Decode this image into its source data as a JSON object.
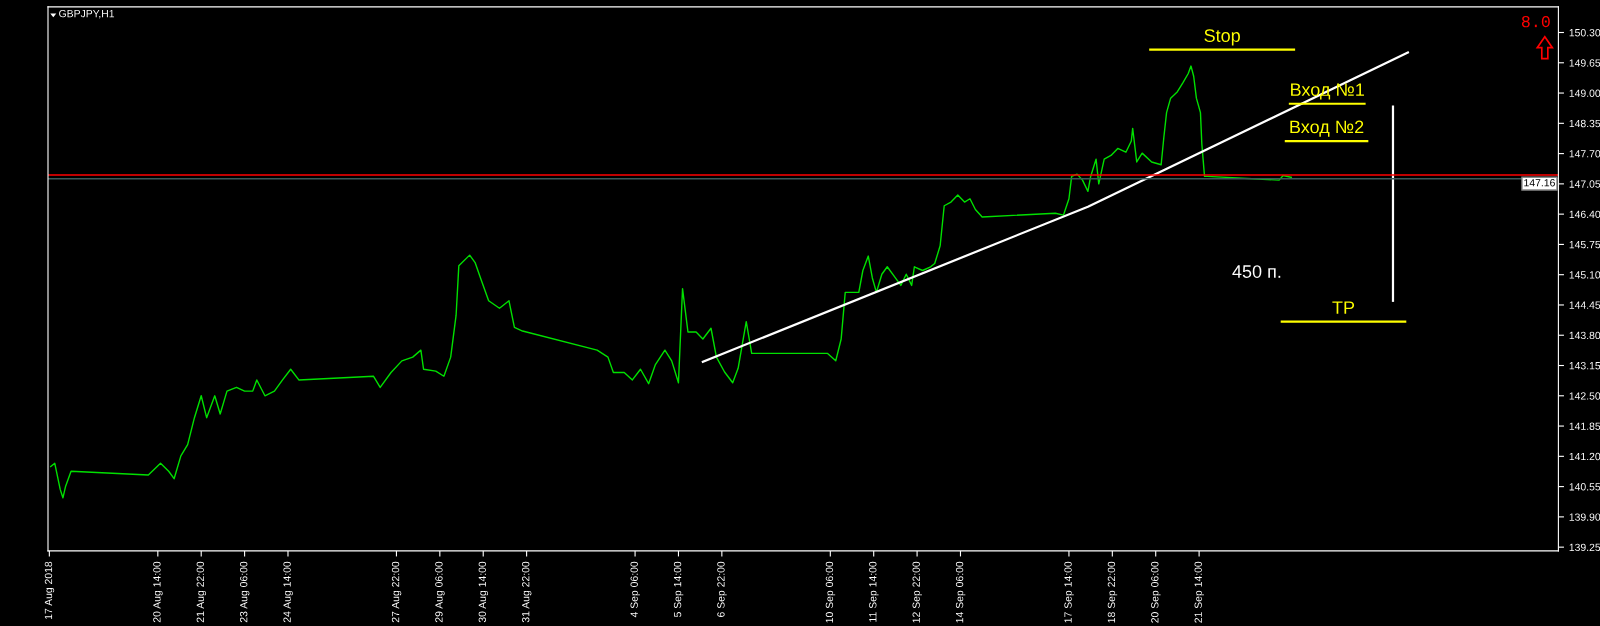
{
  "chart_data": {
    "type": "line",
    "title": "GBPJPY,H1",
    "xlim": [
      "2018-08-17T05:00",
      "2018-10-02T15:00"
    ],
    "ylim": [
      139.17,
      150.85
    ],
    "xticks": [
      {
        "value": "2018-08-17T06:00",
        "label": "17 Aug 2018"
      },
      {
        "value": "2018-08-20T14:00",
        "label": "20 Aug 14:00"
      },
      {
        "value": "2018-08-21T22:00",
        "label": "21 Aug 22:00"
      },
      {
        "value": "2018-08-23T06:00",
        "label": "23 Aug 06:00"
      },
      {
        "value": "2018-08-24T14:00",
        "label": "24 Aug 14:00"
      },
      {
        "value": "2018-08-27T22:00",
        "label": "27 Aug 22:00"
      },
      {
        "value": "2018-08-29T06:00",
        "label": "29 Aug 06:00"
      },
      {
        "value": "2018-08-30T14:00",
        "label": "30 Aug 14:00"
      },
      {
        "value": "2018-08-31T22:00",
        "label": "31 Aug 22:00"
      },
      {
        "value": "2018-09-04T06:00",
        "label": "4 Sep 06:00"
      },
      {
        "value": "2018-09-05T14:00",
        "label": "5 Sep 14:00"
      },
      {
        "value": "2018-09-06T22:00",
        "label": "6 Sep 22:00"
      },
      {
        "value": "2018-09-10T06:00",
        "label": "10 Sep 06:00"
      },
      {
        "value": "2018-09-11T14:00",
        "label": "11 Sep 14:00"
      },
      {
        "value": "2018-09-12T22:00",
        "label": "12 Sep 22:00"
      },
      {
        "value": "2018-09-14T06:00",
        "label": "14 Sep 06:00"
      },
      {
        "value": "2018-09-17T14:00",
        "label": "17 Sep 14:00"
      },
      {
        "value": "2018-09-18T22:00",
        "label": "18 Sep 22:00"
      },
      {
        "value": "2018-09-20T06:00",
        "label": "20 Sep 06:00"
      },
      {
        "value": "2018-09-21T14:00",
        "label": "21 Sep 14:00"
      }
    ],
    "yticks": [
      {
        "value": 150.3,
        "label": "150.30"
      },
      {
        "value": 149.65,
        "label": "149.65"
      },
      {
        "value": 149.0,
        "label": "149.00"
      },
      {
        "value": 148.35,
        "label": "148.35"
      },
      {
        "value": 147.7,
        "label": "147.70"
      },
      {
        "value": 147.05,
        "label": "147.05"
      },
      {
        "value": 146.4,
        "label": "146.40"
      },
      {
        "value": 145.75,
        "label": "145.75"
      },
      {
        "value": 145.1,
        "label": "145.10"
      },
      {
        "value": 144.45,
        "label": "144.45"
      },
      {
        "value": 143.8,
        "label": "143.80"
      },
      {
        "value": 143.15,
        "label": "143.15"
      },
      {
        "value": 142.5,
        "label": "142.50"
      },
      {
        "value": 141.85,
        "label": "141.85"
      },
      {
        "value": 141.2,
        "label": "141.20"
      },
      {
        "value": 140.55,
        "label": "140.55"
      },
      {
        "value": 139.9,
        "label": "139.90"
      },
      {
        "value": 139.25,
        "label": "139.25"
      }
    ],
    "grid": false,
    "legend": false,
    "series": [
      {
        "color": "#00e000",
        "marker": "none",
        "x": [
          "2018-08-17T07:00",
          "2018-08-17T10:00",
          "2018-08-17T14:00",
          "2018-08-17T16:00",
          "2018-08-17T18:00",
          "2018-08-17T22:00",
          "2018-08-20T07:00",
          "2018-08-20T16:00",
          "2018-08-20T22:00",
          "2018-08-21T02:00",
          "2018-08-21T07:00",
          "2018-08-21T12:00",
          "2018-08-21T17:00",
          "2018-08-21T22:00",
          "2018-08-22T02:00",
          "2018-08-22T08:00",
          "2018-08-22T12:00",
          "2018-08-22T17:00",
          "2018-08-23T00:00",
          "2018-08-23T06:00",
          "2018-08-23T12:00",
          "2018-08-23T15:00",
          "2018-08-23T21:00",
          "2018-08-24T04:00",
          "2018-08-24T10:00",
          "2018-08-24T16:00",
          "2018-08-24T22:00",
          "2018-08-27T05:00",
          "2018-08-27T10:00",
          "2018-08-27T18:00",
          "2018-08-28T02:00",
          "2018-08-28T10:00",
          "2018-08-28T16:00",
          "2018-08-28T18:00",
          "2018-08-29T03:00",
          "2018-08-29T09:00",
          "2018-08-29T14:00",
          "2018-08-29T18:00",
          "2018-08-29T20:00",
          "2018-08-30T04:00",
          "2018-08-30T08:00",
          "2018-08-30T12:00",
          "2018-08-30T18:00",
          "2018-08-31T02:00",
          "2018-08-31T09:00",
          "2018-08-31T13:00",
          "2018-08-31T19:00",
          "2018-09-03T02:00",
          "2018-09-03T10:00",
          "2018-09-03T14:00",
          "2018-09-03T22:00",
          "2018-09-04T04:00",
          "2018-09-04T10:00",
          "2018-09-04T16:00",
          "2018-09-04T21:00",
          "2018-09-05T04:00",
          "2018-09-05T09:00",
          "2018-09-05T14:00",
          "2018-09-05T17:00",
          "2018-09-05T21:00",
          "2018-09-06T03:00",
          "2018-09-06T08:00",
          "2018-09-06T14:00",
          "2018-09-06T18:00",
          "2018-09-07T00:00",
          "2018-09-07T06:00",
          "2018-09-07T10:00",
          "2018-09-07T16:00",
          "2018-09-07T20:00",
          "2018-09-10T04:00",
          "2018-09-10T10:00",
          "2018-09-10T14:00",
          "2018-09-10T17:00",
          "2018-09-10T22:00",
          "2018-09-11T03:00",
          "2018-09-11T06:00",
          "2018-09-11T10:00",
          "2018-09-11T13:00",
          "2018-09-11T16:00",
          "2018-09-11T20:00",
          "2018-09-12T00:00",
          "2018-09-12T06:00",
          "2018-09-12T10:00",
          "2018-09-12T14:00",
          "2018-09-12T18:00",
          "2018-09-12T20:00",
          "2018-09-13T02:00",
          "2018-09-13T08:00",
          "2018-09-13T11:00",
          "2018-09-13T15:00",
          "2018-09-13T18:00",
          "2018-09-13T23:00",
          "2018-09-14T04:00",
          "2018-09-14T09:00",
          "2018-09-14T13:00",
          "2018-09-14T17:00",
          "2018-09-14T22:00",
          "2018-09-17T04:00",
          "2018-09-17T10:00",
          "2018-09-17T14:00",
          "2018-09-17T16:00",
          "2018-09-17T20:00",
          "2018-09-18T00:00",
          "2018-09-18T04:00",
          "2018-09-18T06:00",
          "2018-09-18T10:00",
          "2018-09-18T12:00",
          "2018-09-18T16:00",
          "2018-09-18T21:00",
          "2018-09-19T02:00",
          "2018-09-19T08:00",
          "2018-09-19T12:00",
          "2018-09-19T13:00",
          "2018-09-19T16:00",
          "2018-09-19T20:00",
          "2018-09-20T03:00",
          "2018-09-20T10:00",
          "2018-09-20T12:00",
          "2018-09-20T14:00",
          "2018-09-20T17:00",
          "2018-09-20T22:00",
          "2018-09-21T02:00",
          "2018-09-21T06:00",
          "2018-09-21T08:00",
          "2018-09-21T10:00",
          "2018-09-21T12:00",
          "2018-09-21T15:00",
          "2018-09-21T16:00",
          "2018-09-21T18:00",
          "2018-09-21T20:00",
          "2018-09-24T01:00",
          "2018-09-24T04:00",
          "2018-09-24T10:00"
        ],
        "values": [
          140.98,
          141.05,
          140.49,
          140.31,
          140.56,
          140.88,
          140.8,
          141.05,
          140.88,
          140.72,
          141.21,
          141.45,
          142.03,
          142.5,
          142.03,
          142.5,
          142.11,
          142.6,
          142.68,
          142.6,
          142.6,
          142.84,
          142.5,
          142.6,
          142.84,
          143.07,
          142.84,
          142.92,
          142.68,
          143.0,
          143.25,
          143.33,
          143.48,
          143.07,
          143.03,
          142.92,
          143.33,
          144.23,
          145.29,
          145.52,
          145.36,
          145.03,
          144.54,
          144.38,
          144.54,
          143.97,
          143.89,
          143.48,
          143.33,
          143.0,
          143.0,
          142.84,
          143.07,
          142.76,
          143.17,
          143.48,
          143.25,
          142.78,
          144.8,
          143.87,
          143.87,
          143.72,
          143.95,
          143.33,
          143.01,
          142.78,
          143.09,
          144.09,
          143.41,
          143.41,
          143.25,
          143.72,
          144.72,
          144.72,
          144.72,
          145.19,
          145.5,
          145.03,
          144.72,
          145.11,
          145.27,
          145.03,
          144.87,
          145.11,
          144.87,
          145.27,
          145.19,
          145.27,
          145.34,
          145.72,
          146.58,
          146.66,
          146.81,
          146.66,
          146.73,
          146.5,
          146.34,
          146.42,
          146.38,
          146.73,
          147.21,
          147.26,
          147.13,
          146.89,
          147.21,
          147.58,
          147.05,
          147.58,
          147.66,
          147.81,
          147.73,
          147.97,
          148.24,
          147.52,
          147.71,
          147.52,
          147.46,
          148.05,
          148.58,
          148.89,
          149.03,
          149.22,
          149.42,
          149.58,
          149.36,
          148.89,
          148.58,
          147.91,
          147.21,
          147.21,
          147.13,
          147.23,
          147.19
        ]
      },
      {
        "color": "#ffffff",
        "marker": "none",
        "x": [
          "2018-09-06T08:00",
          "2018-09-18T04:00",
          "2018-09-28T00:00"
        ],
        "values": [
          143.23,
          146.56,
          149.87
        ]
      },
      {
        "name": "Stop",
        "color": "#ffff00",
        "marker": "none",
        "x": [
          "2018-09-20T02:00",
          "2018-09-24T12:00"
        ],
        "values": [
          149.93,
          149.93
        ]
      },
      {
        "name": "Вход №1",
        "color": "#ffff00",
        "marker": "none",
        "x": [
          "2018-09-24T09:00",
          "2018-09-25T12:00",
          "2018-09-26T16:00"
        ],
        "values": [
          148.77,
          148.77,
          148.77
        ]
      },
      {
        "name": "Вход №2",
        "color": "#ffff00",
        "marker": "none",
        "x": [
          "2018-09-24T06:00",
          "2018-09-25T12:00",
          "2018-09-26T18:00"
        ],
        "values": [
          147.97,
          147.97,
          147.97
        ]
      },
      {
        "name": "TP",
        "color": "#ffff00",
        "marker": "none",
        "x": [
          "2018-09-24T03:00",
          "2018-09-26T00:00",
          "2018-09-27T22:00"
        ],
        "values": [
          144.09,
          144.09,
          144.09
        ]
      },
      {
        "name": "450 п.",
        "color": "#ffffff",
        "marker": "none",
        "x": [
          "2018-09-27T13:00",
          "2018-09-27T13:00",
          "2018-09-27T13:00"
        ],
        "values": [
          148.71,
          146.62,
          144.54
        ]
      }
    ],
    "ref_lines": [
      {
        "axis": "y",
        "value": 147.24,
        "color": "#ff0000"
      },
      {
        "axis": "y",
        "value": 147.16,
        "color": "#3c5a5a",
        "label": "147.16"
      }
    ],
    "annotations": [
      "8.0"
    ]
  }
}
